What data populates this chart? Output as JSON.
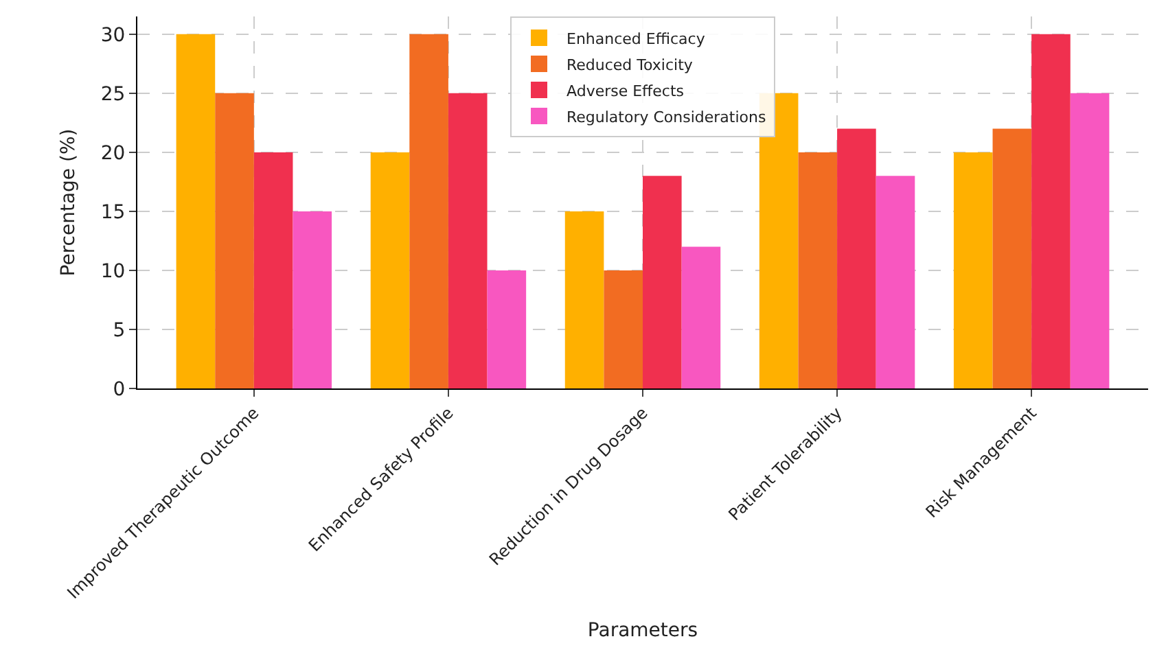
{
  "chart_data": {
    "type": "bar",
    "xlabel": "Parameters",
    "ylabel": "Percentage (%)",
    "categories": [
      "Improved Therapeutic Outcome",
      "Enhanced Safety Profile",
      "Reduction in Drug Dosage",
      "Patient Tolerability",
      "Risk Management"
    ],
    "series": [
      {
        "name": "Enhanced Efficacy",
        "color": "#ffb000",
        "values": [
          30,
          20,
          15,
          25,
          20
        ]
      },
      {
        "name": "Reduced Toxicity",
        "color": "#f26c22",
        "values": [
          25,
          30,
          10,
          20,
          22
        ]
      },
      {
        "name": "Adverse Effects",
        "color": "#f0304f",
        "values": [
          20,
          25,
          18,
          22,
          30
        ]
      },
      {
        "name": "Regulatory Considerations",
        "color": "#f857c0",
        "values": [
          15,
          10,
          12,
          18,
          25
        ]
      }
    ],
    "ylim": [
      0,
      31.5
    ],
    "yticks": [
      0,
      5,
      10,
      15,
      20,
      25,
      30
    ],
    "grid": true,
    "legend": "top"
  }
}
